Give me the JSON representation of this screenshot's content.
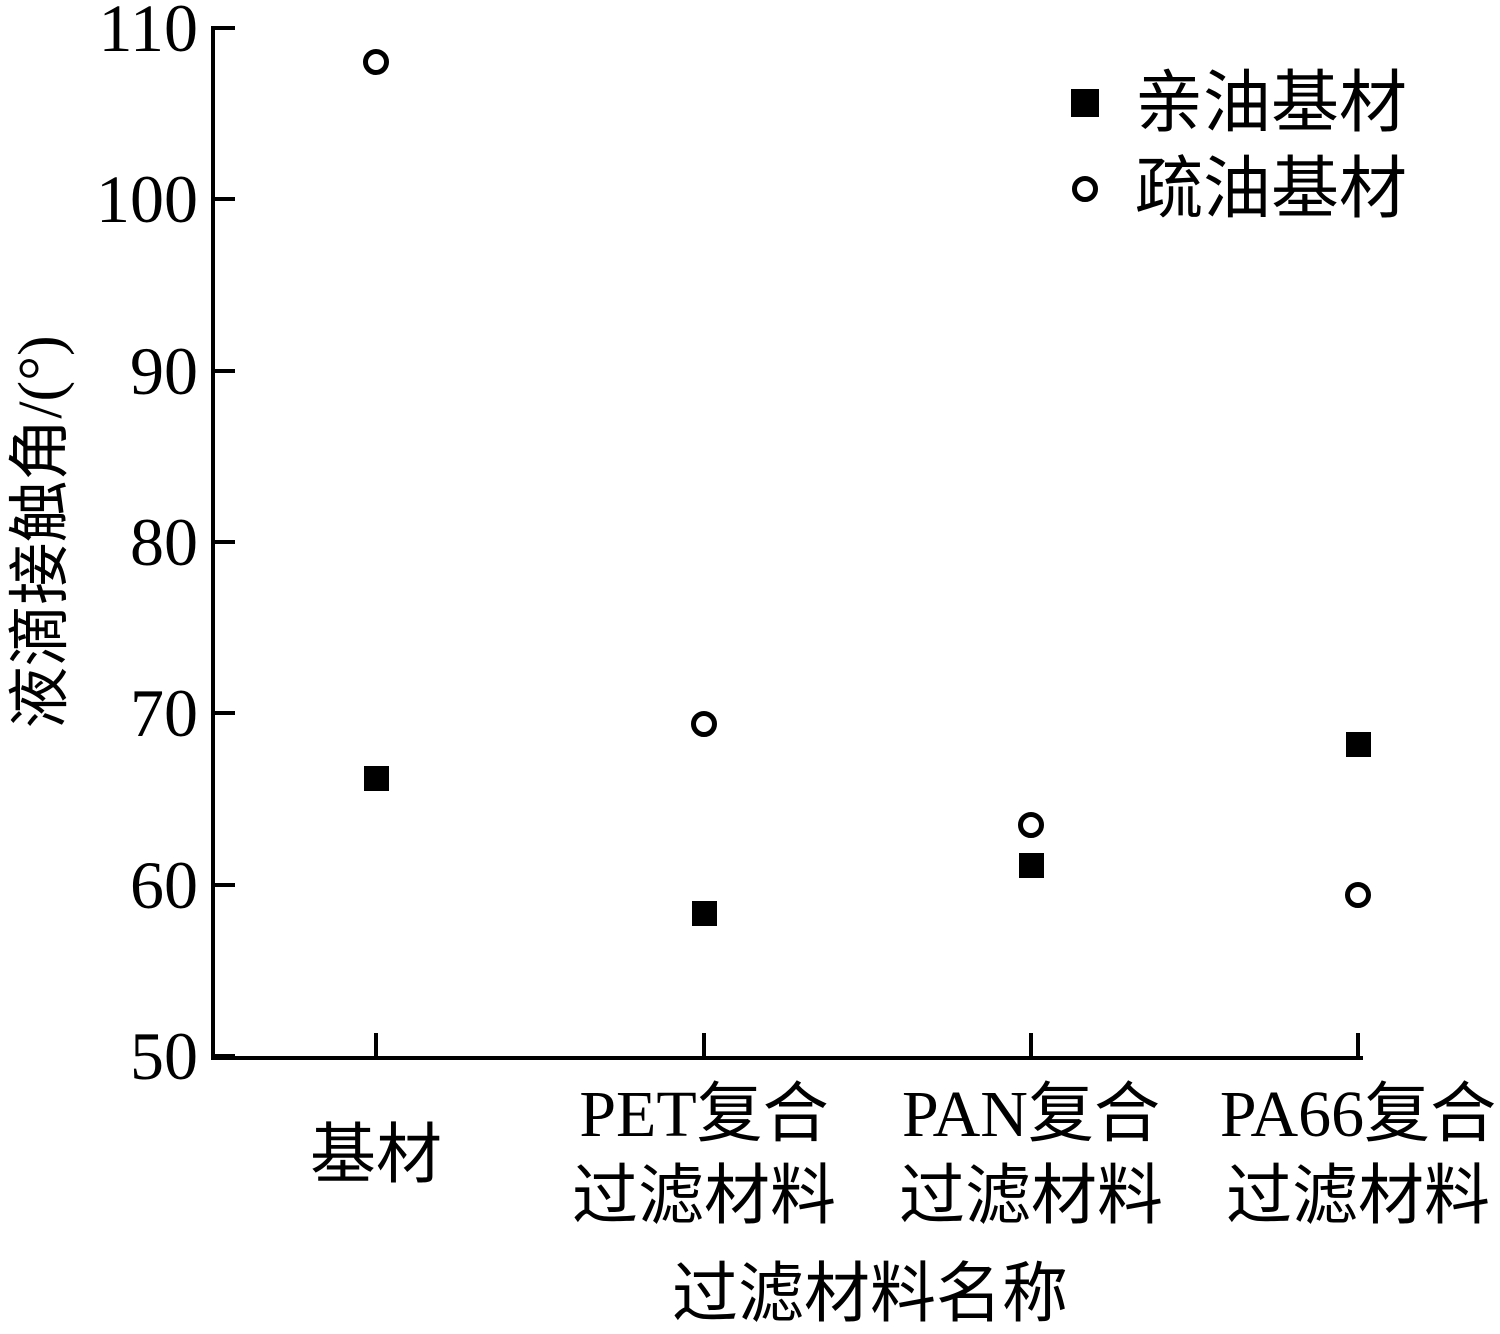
{
  "chart_data": {
    "type": "scatter",
    "title": "",
    "xlabel": "过滤材料名称",
    "ylabel": "液滴接触角/(°)",
    "ylim": [
      50,
      110
    ],
    "yticks": [
      110,
      100,
      90,
      80,
      70,
      60,
      50
    ],
    "categories": [
      "基材",
      "PET复合过滤材料",
      "PAN复合过滤材料",
      "PA66复合过滤材料"
    ],
    "category_label_lines": [
      [
        "基材"
      ],
      [
        "PET复合",
        "过滤材料"
      ],
      [
        "PAN复合",
        "过滤材料"
      ],
      [
        "PA66复合",
        "过滤材料"
      ]
    ],
    "series": [
      {
        "name": "亲油基材",
        "marker": "filled-square",
        "color": "#000000",
        "values": [
          66.2,
          58.3,
          61.1,
          68.2
        ]
      },
      {
        "name": "疏油基材",
        "marker": "open-circle",
        "color": "#000000",
        "values": [
          108.0,
          69.4,
          63.5,
          59.4
        ]
      }
    ],
    "legend_position": "top-right",
    "grid": false,
    "background": "#ffffff"
  }
}
